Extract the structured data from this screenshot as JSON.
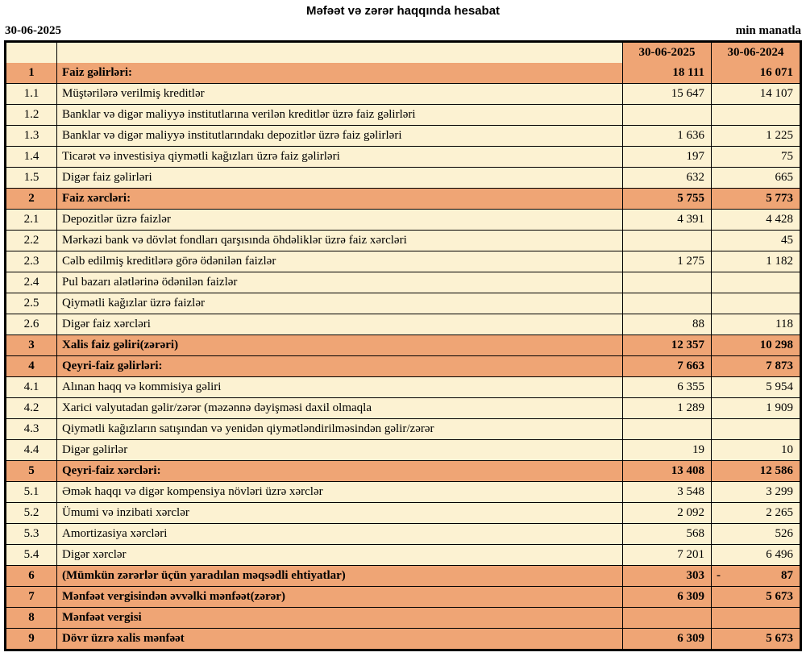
{
  "page": {
    "title": "Məfəət və zərər haqqında hesabat",
    "date_left": "30-06-2025",
    "unit_right": "min manatla"
  },
  "colors": {
    "accent": "#EFA575",
    "row_background": "#FCF2D2",
    "border": "#000000"
  },
  "table": {
    "header": {
      "col_num": "",
      "col_desc": "",
      "col_2025": "30-06-2025",
      "col_2024": "30-06-2024"
    },
    "rows": [
      {
        "num": "1",
        "label": "Faiz gəlirləri:",
        "v2025": "18 111",
        "v2024": "16 071",
        "section": true
      },
      {
        "num": "1.1",
        "label": "Müştərilərə verilmiş kreditlər",
        "v2025": "15 647",
        "v2024": "14 107",
        "section": false
      },
      {
        "num": "1.2",
        "label": "Banklar və digər maliyyə institutlarına verilən kreditlər üzrə faiz gəlirləri",
        "v2025": "",
        "v2024": "",
        "section": false
      },
      {
        "num": "1.3",
        "label": "Banklar və digər maliyyə institutlarındakı depozitlər üzrə faiz gəlirləri",
        "v2025": "1 636",
        "v2024": "1 225",
        "section": false
      },
      {
        "num": "1.4",
        "label": "Ticarət və investisiya qiymətli kağızları üzrə faiz gəlirləri",
        "v2025": "197",
        "v2024": "75",
        "section": false
      },
      {
        "num": "1.5",
        "label": "Digər faiz gəlirləri",
        "v2025": "632",
        "v2024": "665",
        "section": false
      },
      {
        "num": "2",
        "label": "Faiz xərcləri:",
        "v2025": "5 755",
        "v2024": "5 773",
        "section": true
      },
      {
        "num": "2.1",
        "label": "Depozitlər üzrə faizlər",
        "v2025": "4 391",
        "v2024": "4 428",
        "section": false
      },
      {
        "num": "2.2",
        "label": "Mərkəzi bank və dövlət fondları qarşısında öhdəliklər üzrə faiz xərcləri",
        "v2025": "",
        "v2024": "45",
        "section": false
      },
      {
        "num": "2.3",
        "label": "Cəlb edilmiş kreditlərə görə ödənilən faizlər",
        "v2025": "1 275",
        "v2024": "1 182",
        "section": false
      },
      {
        "num": "2.4",
        "label": "Pul bazarı alətlərinə ödənilən faizlər",
        "v2025": "",
        "v2024": "",
        "section": false
      },
      {
        "num": "2.5",
        "label": "Qiymətli kağızlar üzrə faizlər",
        "v2025": "",
        "v2024": "",
        "section": false
      },
      {
        "num": "2.6",
        "label": "Digər faiz xərcləri",
        "v2025": "88",
        "v2024": "118",
        "section": false
      },
      {
        "num": "3",
        "label": "Xalis faiz gəliri(zərəri)",
        "v2025": "12 357",
        "v2024": "10 298",
        "section": true
      },
      {
        "num": "4",
        "label": "Qeyri-faiz gəlirləri:",
        "v2025": "7 663",
        "v2024": "7 873",
        "section": true
      },
      {
        "num": "4.1",
        "label": "Alınan haqq və kommisiya gəliri",
        "v2025": "6 355",
        "v2024": "5 954",
        "section": false
      },
      {
        "num": "4.2",
        "label": "Xarici valyutadan gəlir/zərər (məzənnə dəyişməsi daxil olmaqla",
        "v2025": "1 289",
        "v2024": "1 909",
        "section": false
      },
      {
        "num": "4.3",
        "label": "Qiymətli kağızların satışından və yenidən qiymətləndirilməsindən gəlir/zərər",
        "v2025": "",
        "v2024": "",
        "section": false
      },
      {
        "num": "4.4",
        "label": "Digər gəlirlər",
        "v2025": "19",
        "v2024": "10",
        "section": false
      },
      {
        "num": "5",
        "label": "Qeyri-faiz xərcləri:",
        "v2025": "13 408",
        "v2024": "12 586",
        "section": true
      },
      {
        "num": "5.1",
        "label": "Əmək haqqı və digər kompensiya növləri üzrə xərclər",
        "v2025": "3 548",
        "v2024": "3 299",
        "section": false
      },
      {
        "num": "5.2",
        "label": "Ümumi və inzibati xərclər",
        "v2025": "2 092",
        "v2024": "2 265",
        "section": false
      },
      {
        "num": "5.3",
        "label": "Amortizasiya xərcləri",
        "v2025": "568",
        "v2024": "526",
        "section": false
      },
      {
        "num": "5.4",
        "label": "Digər xərclər",
        "v2025": "7 201",
        "v2024": "6 496",
        "section": false
      },
      {
        "num": "6",
        "label": "(Mümkün zərərlər üçün yaradılan məqsədli ehtiyatlar)",
        "v2025": "303",
        "v2024": "- 87",
        "section": true
      },
      {
        "num": "7",
        "label": "Mənfəət vergisindən əvvəlki mənfəət(zərər)",
        "v2025": "6 309",
        "v2024": "5 673",
        "section": true
      },
      {
        "num": "8",
        "label": "Mənfəət vergisi",
        "v2025": "",
        "v2024": "",
        "section": true
      },
      {
        "num": "9",
        "label": "Dövr üzrə xalis mənfəət",
        "v2025": "6 309",
        "v2024": "5 673",
        "section": true
      }
    ]
  }
}
